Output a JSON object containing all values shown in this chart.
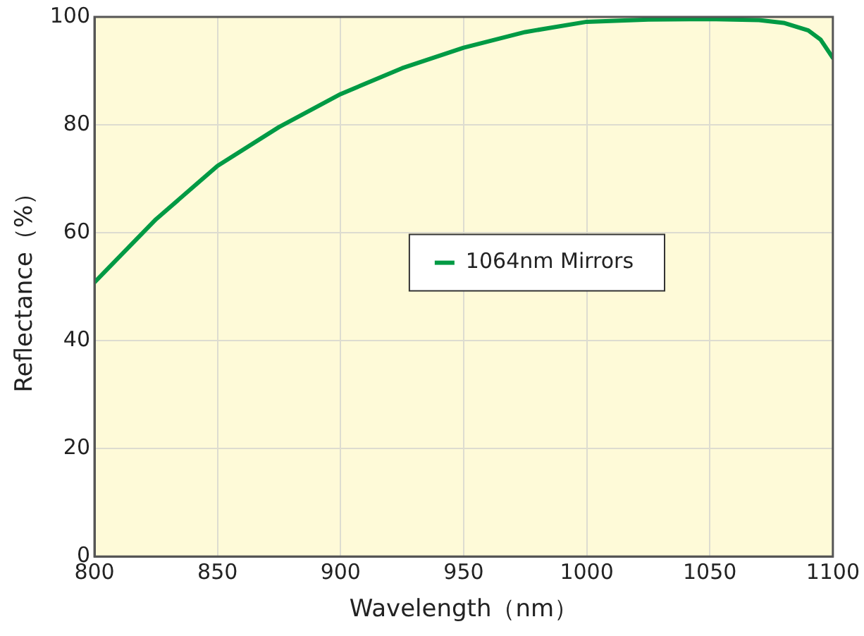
{
  "chart_data": {
    "type": "line",
    "xlabel": "Wavelength（nm）",
    "ylabel": "Reflectance（%）",
    "xlim": [
      800,
      1100
    ],
    "xticks": [
      800,
      850,
      900,
      950,
      1000,
      1050,
      1100
    ],
    "ylim": [
      0,
      100
    ],
    "yticks": [
      0,
      20,
      40,
      60,
      80,
      100
    ],
    "grid": true,
    "legend": "center",
    "marker": "none",
    "line_style": "solid",
    "series": [
      {
        "name": "1064nm Mirrors",
        "color": "#009a44",
        "x": [
          800,
          825,
          850,
          875,
          900,
          925,
          950,
          975,
          1000,
          1025,
          1050,
          1070,
          1080,
          1090,
          1095,
          1100
        ],
        "values": [
          50.8,
          62.5,
          72.4,
          79.6,
          85.7,
          90.5,
          94.3,
          97.2,
          99.1,
          99.5,
          99.6,
          99.4,
          98.9,
          97.5,
          95.8,
          92.4
        ]
      }
    ]
  }
}
